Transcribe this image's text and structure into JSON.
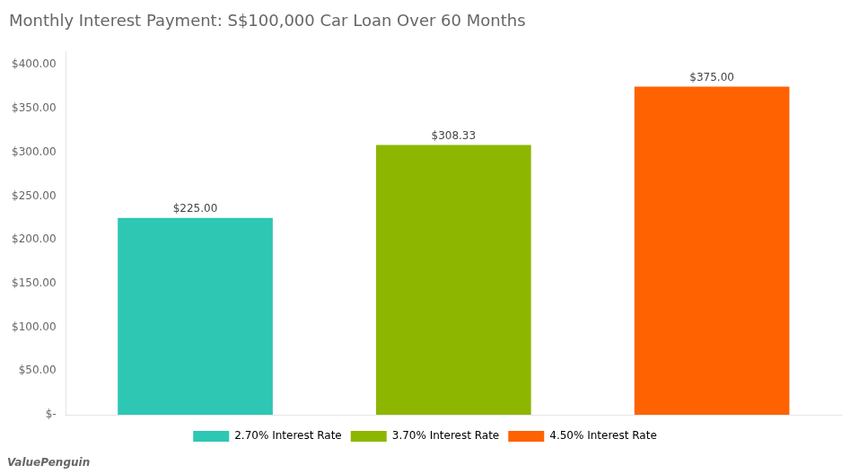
{
  "chart_data": {
    "type": "bar",
    "title": "Monthly Interest Payment: S$100,000 Car Loan Over 60 Months",
    "categories": [
      "2.70% Interest Rate",
      "3.70% Interest Rate",
      "4.50% Interest Rate"
    ],
    "values": [
      225.0,
      308.33,
      375.0
    ],
    "value_labels": [
      "$225.00",
      "$308.33",
      "$375.00"
    ],
    "data_labels": true,
    "colors": [
      "#2DC7B4",
      "#8DB600",
      "#FF6200"
    ],
    "ylim": [
      0,
      415
    ],
    "yticks": [
      {
        "value": 0,
        "label": "$-"
      },
      {
        "value": 50,
        "label": "$50.00"
      },
      {
        "value": 100,
        "label": "$100.00"
      },
      {
        "value": 150,
        "label": "$150.00"
      },
      {
        "value": 200,
        "label": "$200.00"
      },
      {
        "value": 250,
        "label": "$250.00"
      },
      {
        "value": 300,
        "label": "$300.00"
      },
      {
        "value": 350,
        "label": "$350.00"
      },
      {
        "value": 400,
        "label": "$400.00"
      }
    ],
    "tick_labels": "y",
    "grid": false,
    "legend": "bottom",
    "annotations": [
      "ValuePenguin"
    ]
  }
}
